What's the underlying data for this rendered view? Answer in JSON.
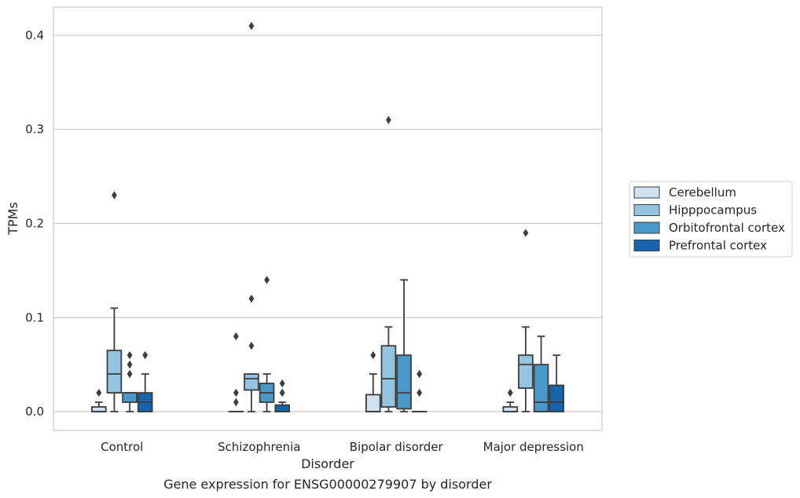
{
  "chart_data": {
    "type": "box",
    "title": "",
    "caption": "Gene expression for ENSG00000279907 by disorder",
    "xlabel": "Disorder",
    "ylabel": "TPMs",
    "ylim": [
      -0.02,
      0.43
    ],
    "yticks": [
      "0.0",
      "0.1",
      "0.2",
      "0.3",
      "0.4"
    ],
    "grid": "horizontal",
    "legend_position": "right",
    "categories": [
      "Control",
      "Schizophrenia",
      "Bipolar disorder",
      "Major depression"
    ],
    "series": [
      {
        "name": "Cerebellum",
        "color": "#d0e1f2",
        "boxes": [
          {
            "q1": 0.0,
            "median": 0.0,
            "q3": 0.005,
            "whisker_low": 0.0,
            "whisker_high": 0.01,
            "outliers": [
              0.02
            ]
          },
          {
            "q1": 0.0,
            "median": 0.0,
            "q3": 0.0,
            "whisker_low": 0.0,
            "whisker_high": 0.0,
            "outliers": [
              0.08,
              0.01,
              0.02
            ]
          },
          {
            "q1": 0.0,
            "median": 0.0,
            "q3": 0.018,
            "whisker_low": 0.0,
            "whisker_high": 0.04,
            "outliers": [
              0.06
            ]
          },
          {
            "q1": 0.0,
            "median": 0.0,
            "q3": 0.005,
            "whisker_low": 0.0,
            "whisker_high": 0.01,
            "outliers": [
              0.02
            ]
          }
        ]
      },
      {
        "name": "Hipppocampus",
        "color": "#94c4df",
        "boxes": [
          {
            "q1": 0.02,
            "median": 0.04,
            "q3": 0.065,
            "whisker_low": 0.0,
            "whisker_high": 0.11,
            "outliers": [
              0.23
            ]
          },
          {
            "q1": 0.023,
            "median": 0.035,
            "q3": 0.04,
            "whisker_low": 0.0,
            "whisker_high": 0.04,
            "outliers": [
              0.41,
              0.12,
              0.07
            ]
          },
          {
            "q1": 0.005,
            "median": 0.035,
            "q3": 0.07,
            "whisker_low": 0.0,
            "whisker_high": 0.09,
            "outliers": [
              0.31
            ]
          },
          {
            "q1": 0.025,
            "median": 0.05,
            "q3": 0.06,
            "whisker_low": 0.0,
            "whisker_high": 0.09,
            "outliers": [
              0.19
            ]
          }
        ]
      },
      {
        "name": "Orbitofrontal cortex",
        "color": "#4a98c9",
        "boxes": [
          {
            "q1": 0.01,
            "median": 0.02,
            "q3": 0.02,
            "whisker_low": 0.0,
            "whisker_high": 0.02,
            "outliers": [
              0.06,
              0.05,
              0.04
            ]
          },
          {
            "q1": 0.01,
            "median": 0.02,
            "q3": 0.03,
            "whisker_low": 0.0,
            "whisker_high": 0.04,
            "outliers": [
              0.14
            ]
          },
          {
            "q1": 0.003,
            "median": 0.02,
            "q3": 0.06,
            "whisker_low": 0.0,
            "whisker_high": 0.14,
            "outliers": []
          },
          {
            "q1": 0.0,
            "median": 0.01,
            "q3": 0.05,
            "whisker_low": 0.0,
            "whisker_high": 0.08,
            "outliers": []
          }
        ]
      },
      {
        "name": "Prefrontal cortex",
        "color": "#1764ab",
        "boxes": [
          {
            "q1": 0.0,
            "median": 0.01,
            "q3": 0.02,
            "whisker_low": 0.0,
            "whisker_high": 0.04,
            "outliers": [
              0.06
            ]
          },
          {
            "q1": 0.0,
            "median": 0.0,
            "q3": 0.007,
            "whisker_low": 0.0,
            "whisker_high": 0.01,
            "outliers": [
              0.03,
              0.02,
              0.02
            ]
          },
          {
            "q1": 0.0,
            "median": 0.0,
            "q3": 0.0,
            "whisker_low": 0.0,
            "whisker_high": 0.0,
            "outliers": [
              0.04,
              0.02
            ]
          },
          {
            "q1": 0.0,
            "median": 0.01,
            "q3": 0.028,
            "whisker_low": 0.0,
            "whisker_high": 0.06,
            "outliers": []
          }
        ]
      }
    ]
  }
}
